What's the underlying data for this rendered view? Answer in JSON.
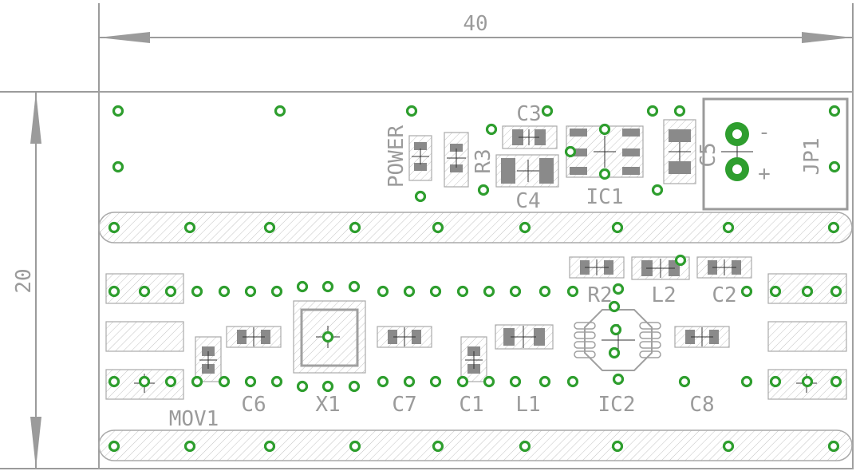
{
  "dimensions": {
    "width_label": "40",
    "height_label": "20"
  },
  "labels": {
    "c3": "C3",
    "c4": "C4",
    "c5": "C5",
    "ic1": "IC1",
    "jp1": "JP1",
    "power": "POWER",
    "r3": "R3",
    "minus": "-",
    "plus": "+",
    "r2": "R2",
    "l2": "L2",
    "c2": "C2",
    "c6": "C6",
    "x1": "X1",
    "c7": "C7",
    "c1": "C1",
    "l1": "L1",
    "ic2": "IC2",
    "c8": "C8",
    "mov1": "MOV1"
  },
  "colors": {
    "pad": "#2e9e2e",
    "silk": "#9b9b9b",
    "copper_fill": "#8a8a8a",
    "outline": "#a0a0a0"
  }
}
